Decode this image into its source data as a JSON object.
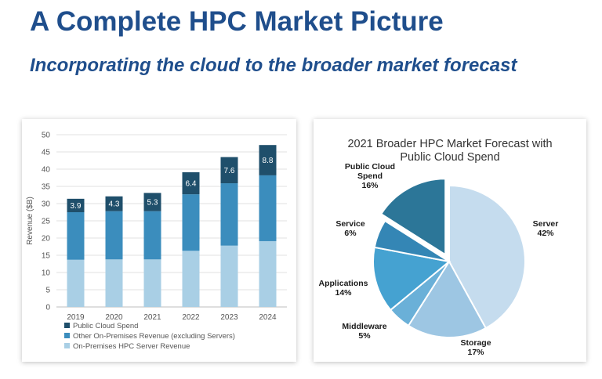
{
  "page": {
    "title": "A Complete HPC Market Picture",
    "subtitle": "Incorporating the cloud to the broader market forecast"
  },
  "colors": {
    "server": "#a9cfe5",
    "other": "#3b8dbd",
    "cloud": "#1f4f6b",
    "pie_server": "#c5dcee",
    "pie_storage": "#9dc6e3",
    "pie_middleware": "#6ab0d8",
    "pie_applications": "#45a2d1",
    "pie_service": "#3486b5",
    "pie_cloud": "#2c7698"
  },
  "chart_data": [
    {
      "type": "bar",
      "stacked": true,
      "categories": [
        "2019",
        "2020",
        "2021",
        "2022",
        "2023",
        "2024"
      ],
      "series": [
        {
          "name": "On-Premises HPC Server Revenue",
          "values": [
            13.7,
            13.8,
            13.8,
            16.3,
            17.8,
            19.1
          ]
        },
        {
          "name": "Other On-Premises Revenue (excluding Servers)",
          "values": [
            13.8,
            14.0,
            14.0,
            16.4,
            18.1,
            19.1
          ]
        },
        {
          "name": "Public Cloud Spend",
          "values": [
            3.9,
            4.3,
            5.3,
            6.4,
            7.6,
            8.8
          ]
        }
      ],
      "data_labels": [
        "3.9",
        "4.3",
        "5.3",
        "6.4",
        "7.6",
        "8.8"
      ],
      "ylabel": "Revenue ($B)",
      "xlabel": "",
      "ylim": [
        0,
        50
      ],
      "yticks": [
        "0",
        "5",
        "10",
        "15",
        "20",
        "25",
        "30",
        "35",
        "40",
        "45",
        "50"
      ],
      "grid": true,
      "legend_position": "bottom",
      "legend": [
        "Public Cloud Spend",
        "Other On-Premises Revenue (excluding Servers)",
        "On-Premises HPC Server Revenue"
      ]
    },
    {
      "type": "pie",
      "title": [
        "2021 Broader HPC Market Forecast with",
        "Public Cloud Spend"
      ],
      "slices": [
        {
          "name": "Server",
          "value": 42,
          "label": "42%"
        },
        {
          "name": "Storage",
          "value": 17,
          "label": "17%"
        },
        {
          "name": "Middleware",
          "value": 5,
          "label": "5%"
        },
        {
          "name": "Applications",
          "value": 14,
          "label": "14%"
        },
        {
          "name": "Service",
          "value": 6,
          "label": "6%"
        },
        {
          "name": "Public Cloud Spend",
          "value": 16,
          "label": "16%",
          "exploded": true
        }
      ]
    }
  ]
}
